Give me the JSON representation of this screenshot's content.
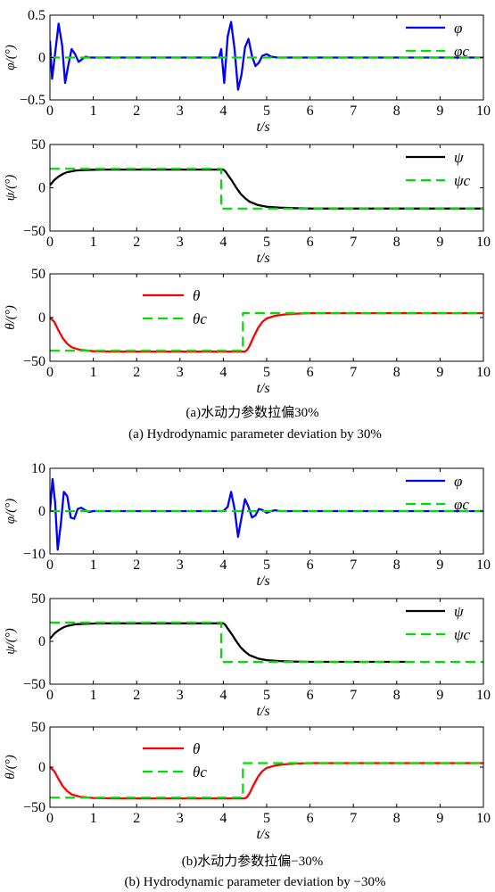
{
  "colors": {
    "phi": "#0000ff",
    "psi": "#000000",
    "theta": "#ff0000",
    "command": "#00dd00"
  },
  "x_axis": {
    "label": "t/s",
    "ticks": [
      0,
      1,
      2,
      3,
      4,
      5,
      6,
      7,
      8,
      9,
      10
    ]
  },
  "groups": [
    {
      "caption_cn": "(a)水动力参数拉偏30%",
      "caption_en": "(a) Hydrodynamic parameter deviation by 30%",
      "charts": [
        {
          "type": "line",
          "ylabel": "φ/(°)",
          "ylim": [
            -0.5,
            0.5
          ],
          "yticks": [
            "0.5",
            "0",
            "−0.5"
          ],
          "ytick_values": [
            0.5,
            0,
            -0.5
          ],
          "legend": [
            "φ",
            "φc"
          ],
          "legend_pos": "top-right",
          "series": [
            {
              "name": "φ",
              "style": "solid",
              "color": "#0000ff",
              "x": [
                0,
                0.05,
                0.12,
                0.2,
                0.28,
                0.35,
                0.42,
                0.5,
                0.58,
                0.66,
                0.74,
                0.82,
                0.9,
                1.0,
                1.1,
                1.2,
                3.9,
                3.95,
                4.02,
                4.1,
                4.18,
                4.26,
                4.34,
                4.42,
                4.5,
                4.58,
                4.66,
                4.74,
                4.82,
                4.9,
                5.0,
                5.1,
                5.25,
                5.4,
                10
              ],
              "y": [
                0.2,
                -0.25,
                0.05,
                0.4,
                0.15,
                -0.3,
                -0.1,
                0.1,
                0.04,
                -0.05,
                -0.02,
                0.01,
                0,
                0,
                0,
                0,
                0,
                0.1,
                -0.3,
                0.25,
                0.42,
                0.1,
                -0.38,
                -0.2,
                0.12,
                0.22,
                0.02,
                -0.1,
                -0.06,
                0.02,
                0.04,
                0.01,
                0,
                0,
                0
              ]
            },
            {
              "name": "φc",
              "style": "dashed",
              "color": "#00dd00",
              "x": [
                0,
                10
              ],
              "y": [
                0,
                0
              ]
            }
          ]
        },
        {
          "type": "line",
          "ylabel": "ψ/(°)",
          "ylim": [
            -50,
            50
          ],
          "yticks": [
            "50",
            "0",
            "−50"
          ],
          "ytick_values": [
            50,
            0,
            -50
          ],
          "legend": [
            "ψ",
            "ψc"
          ],
          "legend_pos": "top-right",
          "series": [
            {
              "name": "ψ",
              "style": "solid",
              "color": "#000000",
              "x": [
                0,
                0.1,
                0.2,
                0.3,
                0.4,
                0.5,
                0.6,
                0.8,
                1.0,
                1.2,
                4.0,
                4.05,
                4.1,
                4.2,
                4.3,
                4.4,
                4.5,
                4.6,
                4.8,
                5.0,
                5.3,
                5.6,
                6.0,
                7.0,
                10
              ],
              "y": [
                3,
                9,
                13,
                16,
                18,
                19,
                20,
                20.5,
                20.8,
                21,
                21,
                19,
                15,
                8,
                0,
                -7,
                -12,
                -16,
                -20,
                -22,
                -23,
                -23.5,
                -24,
                -24,
                -24
              ]
            },
            {
              "name": "ψc",
              "style": "dashed",
              "color": "#00dd00",
              "x": [
                0,
                3.95,
                3.95,
                10
              ],
              "y": [
                22,
                22,
                -24,
                -24
              ]
            }
          ]
        },
        {
          "type": "line",
          "ylabel": "θ/(°)",
          "ylim": [
            -50,
            50
          ],
          "yticks": [
            "50",
            "0",
            "−50"
          ],
          "ytick_values": [
            50,
            0,
            -50
          ],
          "legend": [
            "θ",
            "θc"
          ],
          "legend_pos": "top-left",
          "series": [
            {
              "name": "θ",
              "style": "solid",
              "color": "#ff0000",
              "x": [
                0,
                0.1,
                0.2,
                0.3,
                0.4,
                0.5,
                0.7,
                1.0,
                1.5,
                4.5,
                4.55,
                4.6,
                4.7,
                4.8,
                4.9,
                5.0,
                5.2,
                5.4,
                5.7,
                6.0,
                10
              ],
              "y": [
                0,
                -5,
                -15,
                -24,
                -30,
                -34,
                -37,
                -38.5,
                -39,
                -39,
                -37,
                -33,
                -22,
                -12,
                -5,
                -1,
                2,
                3.5,
                4.5,
                5,
                5
              ]
            },
            {
              "name": "θc",
              "style": "dashed",
              "color": "#00dd00",
              "x": [
                0,
                4.45,
                4.45,
                10
              ],
              "y": [
                -38,
                -38,
                5,
                5
              ]
            }
          ]
        }
      ]
    },
    {
      "caption_cn": "(b)水动力参数拉偏−30%",
      "caption_en": "(b) Hydrodynamic parameter deviation by −30%",
      "charts": [
        {
          "type": "line",
          "ylabel": "φ/(°)",
          "ylim": [
            -10,
            10
          ],
          "yticks": [
            "10",
            "0",
            "−10"
          ],
          "ytick_values": [
            10,
            0,
            -10
          ],
          "legend": [
            "φ",
            "φc"
          ],
          "legend_pos": "top-right",
          "series": [
            {
              "name": "φ",
              "style": "solid",
              "color": "#0000ff",
              "x": [
                0,
                0.06,
                0.12,
                0.18,
                0.25,
                0.32,
                0.4,
                0.48,
                0.56,
                0.64,
                0.72,
                0.8,
                0.9,
                1.0,
                1.1,
                1.2,
                4.0,
                4.1,
                4.18,
                4.26,
                4.34,
                4.42,
                4.5,
                4.58,
                4.66,
                4.74,
                4.82,
                4.9,
                5.0,
                5.1,
                5.2,
                5.3,
                5.4,
                10
              ],
              "y": [
                0,
                7.5,
                2,
                -9,
                -3,
                4.5,
                3.5,
                -1.5,
                -1.8,
                0.5,
                0.8,
                0.3,
                -0.2,
                0,
                0,
                0,
                0,
                1,
                4.5,
                0.5,
                -6,
                -1.5,
                2.8,
                1,
                -1.5,
                -1,
                0.5,
                0.3,
                -0.4,
                0,
                0.2,
                0,
                0,
                0
              ]
            },
            {
              "name": "φc",
              "style": "dashed",
              "color": "#00dd00",
              "x": [
                0,
                10
              ],
              "y": [
                0,
                0
              ]
            }
          ]
        },
        {
          "type": "line",
          "ylabel": "ψ/(°)",
          "ylim": [
            -50,
            50
          ],
          "yticks": [
            "50",
            "0",
            "−50"
          ],
          "ytick_values": [
            50,
            0,
            -50
          ],
          "legend": [
            "ψ",
            "ψc"
          ],
          "legend_pos": "top-right",
          "series": [
            {
              "name": "ψ",
              "style": "solid",
              "color": "#000000",
              "x": [
                0,
                0.1,
                0.2,
                0.3,
                0.4,
                0.5,
                0.6,
                0.8,
                1.0,
                1.2,
                4.0,
                4.05,
                4.1,
                4.2,
                4.3,
                4.4,
                4.5,
                4.6,
                4.8,
                5.0,
                5.3,
                5.6,
                6.0,
                7.0,
                8.25
              ],
              "y": [
                3,
                9,
                13,
                16,
                18,
                19,
                20,
                20.5,
                20.8,
                21,
                21,
                19,
                15,
                8,
                0,
                -7,
                -12,
                -16,
                -20,
                -22,
                -23,
                -23.5,
                -24,
                -24,
                -24
              ]
            },
            {
              "name": "ψc",
              "style": "dashed",
              "color": "#00dd00",
              "x": [
                0,
                3.95,
                3.95,
                10
              ],
              "y": [
                22,
                22,
                -24,
                -24
              ]
            }
          ]
        },
        {
          "type": "line",
          "ylabel": "θ/(°)",
          "ylim": [
            -50,
            50
          ],
          "yticks": [
            "50",
            "0",
            "−50"
          ],
          "ytick_values": [
            50,
            0,
            -50
          ],
          "legend": [
            "θ",
            "θc"
          ],
          "legend_pos": "top-left",
          "series": [
            {
              "name": "θ",
              "style": "solid",
              "color": "#ff0000",
              "x": [
                0,
                0.1,
                0.2,
                0.3,
                0.4,
                0.5,
                0.7,
                1.0,
                1.5,
                4.5,
                4.55,
                4.6,
                4.7,
                4.8,
                4.9,
                5.0,
                5.2,
                5.4,
                5.7,
                6.0,
                10
              ],
              "y": [
                0,
                -5,
                -15,
                -24,
                -30,
                -34,
                -37,
                -38.5,
                -39,
                -39,
                -37,
                -33,
                -22,
                -12,
                -5,
                -1,
                2,
                3.5,
                4.5,
                5,
                5
              ]
            },
            {
              "name": "θc",
              "style": "dashed",
              "color": "#00dd00",
              "x": [
                0,
                4.45,
                4.45,
                10
              ],
              "y": [
                -38,
                -38,
                5,
                5
              ]
            }
          ]
        }
      ]
    }
  ]
}
